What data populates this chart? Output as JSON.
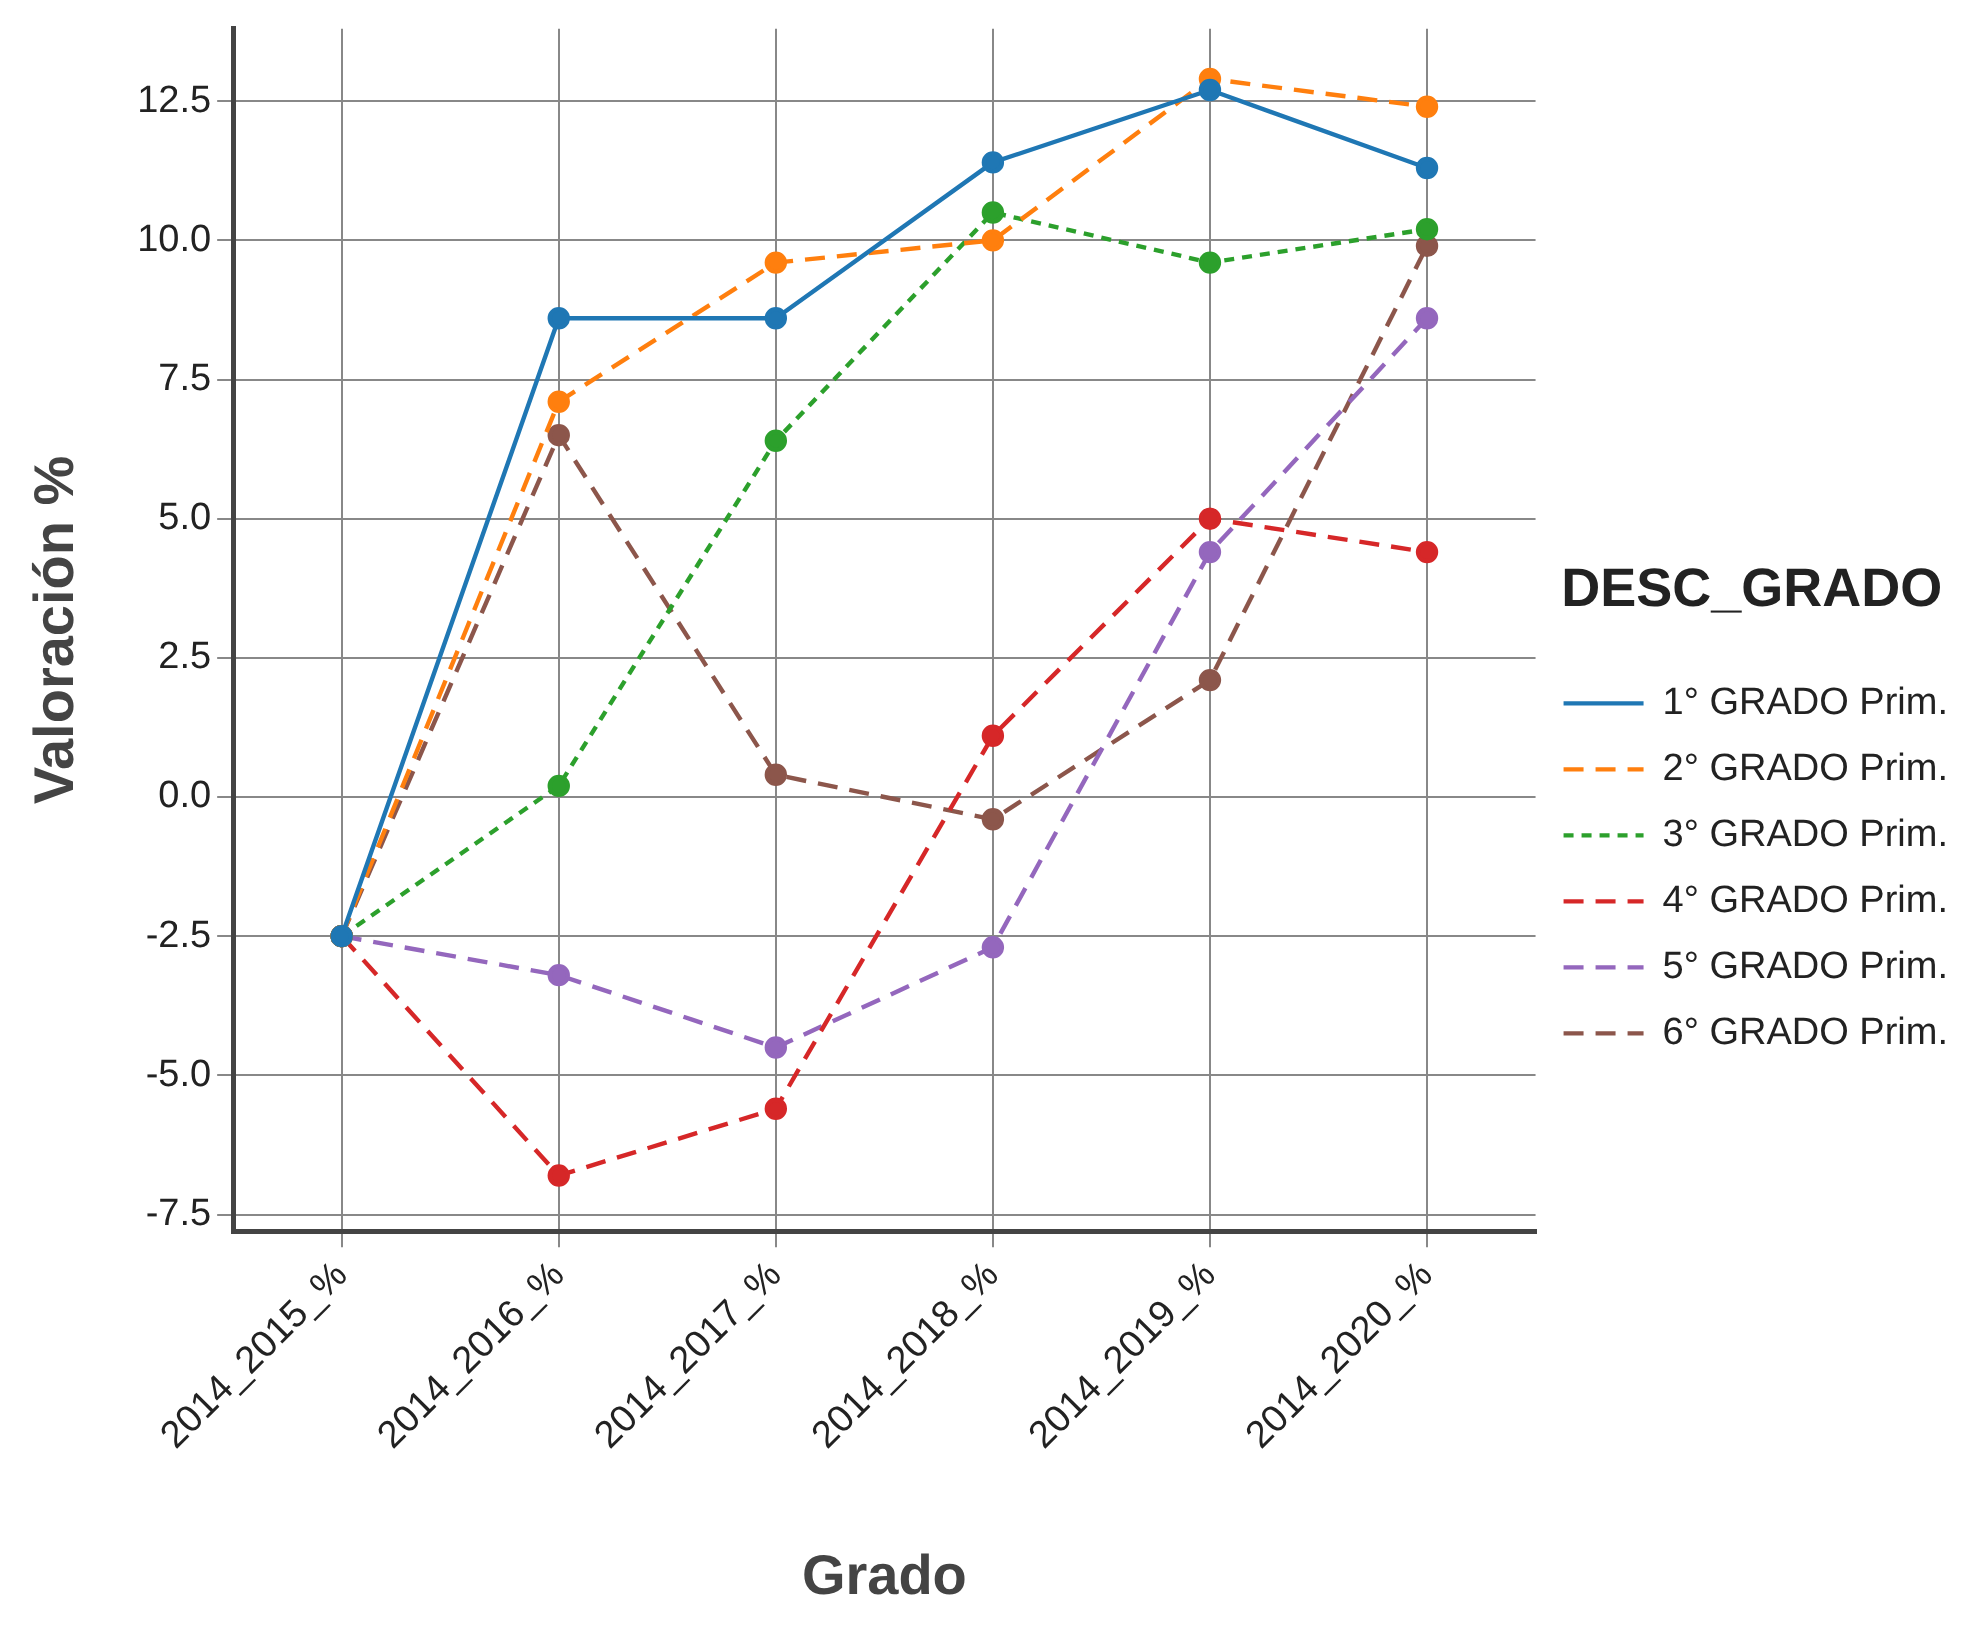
{
  "chart_data": {
    "type": "line",
    "xlabel": "Grado",
    "ylabel": "Valoración %",
    "legend_title": "DESC_GRADO",
    "legend": "right",
    "grid": true,
    "marker": "circle",
    "categories": [
      "2014_2015_%",
      "2014_2016_%",
      "2014_2017_%",
      "2014_2018_%",
      "2014_2019_%",
      "2014_2020_%"
    ],
    "ylim": [
      -7.8,
      13.8
    ],
    "yticks": [
      {
        "value": -7.5,
        "label": "-7.5"
      },
      {
        "value": -5,
        "label": "-5.0"
      },
      {
        "value": -2.5,
        "label": "-2.5"
      },
      {
        "value": 0,
        "label": "0.0"
      },
      {
        "value": 2.5,
        "label": "2.5"
      },
      {
        "value": 5,
        "label": "5.0"
      },
      {
        "value": 7.5,
        "label": "7.5"
      },
      {
        "value": 10,
        "label": "10.0"
      },
      {
        "value": 12.5,
        "label": "12.5"
      }
    ],
    "series": [
      {
        "name": "1° GRADO Prim.",
        "color": "#1f77b4",
        "line_style": "solid",
        "values": [
          -2.5,
          8.6,
          8.6,
          11.4,
          12.7,
          11.3
        ]
      },
      {
        "name": "2° GRADO Prim.",
        "color": "#ff7f0e",
        "line_style": "dashed",
        "values": [
          -2.5,
          7.1,
          9.6,
          10.0,
          12.9,
          12.4
        ]
      },
      {
        "name": "3° GRADO Prim.",
        "color": "#2ca02c",
        "line_style": "dotted",
        "values": [
          -2.5,
          0.2,
          6.4,
          10.5,
          9.6,
          10.2
        ]
      },
      {
        "name": "4° GRADO Prim.",
        "color": "#d62728",
        "line_style": "dashed",
        "values": [
          -2.5,
          -6.8,
          -5.6,
          1.1,
          5.0,
          4.4
        ]
      },
      {
        "name": "5° GRADO Prim.",
        "color": "#9467bd",
        "line_style": "dashed",
        "values": [
          -2.5,
          -3.2,
          -4.5,
          -2.7,
          4.4,
          8.6
        ]
      },
      {
        "name": "6° GRADO Prim.",
        "color": "#8c564b",
        "line_style": "dashed",
        "values": [
          -2.5,
          6.5,
          0.4,
          -0.4,
          2.1,
          9.9
        ]
      }
    ]
  }
}
